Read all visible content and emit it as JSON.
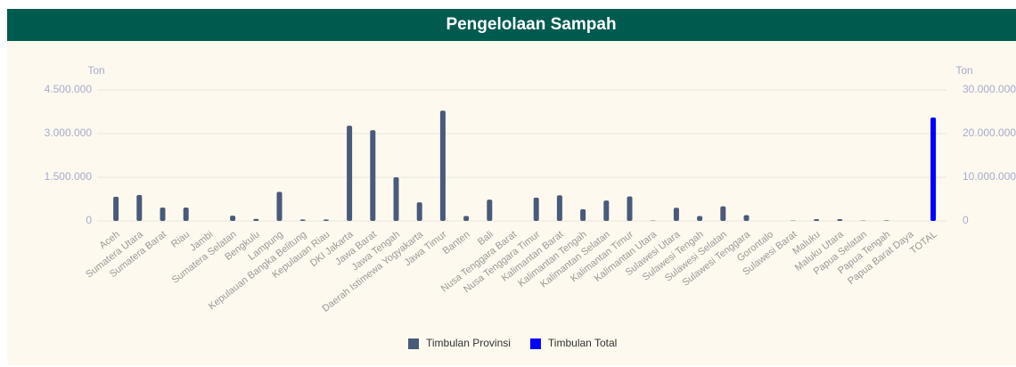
{
  "chart_data": {
    "type": "bar",
    "title": "Pengelolaan Sampah",
    "y_label": "Ton",
    "y2_label": "Ton",
    "categories": [
      "Aceh",
      "Sumatera Utara",
      "Sumatera Barat",
      "Riau",
      "Jambi",
      "Sumatera Selatan",
      "Bengkulu",
      "Lampung",
      "Kepulauan Bangka Belitung",
      "Kepulauan Riau",
      "DKI Jakarta",
      "Jawa Barat",
      "Jawa Tengah",
      "Daerah Istimewa Yogyakarta",
      "Jawa Timur",
      "Banten",
      "Bali",
      "Nusa Tenggara Barat",
      "Nusa Tenggara Timur",
      "Kalimantan Barat",
      "Kalimantan Tengah",
      "Kalimantan Selatan",
      "Kalimantan Timur",
      "Kalimantan Utara",
      "Sulawesi Utara",
      "Sulawesi Tengah",
      "Sulawesi Selatan",
      "Sulawesi Tenggara",
      "Gorontalo",
      "Sulawesi Barat",
      "Maluku",
      "Maluku Utara",
      "Papua Selatan",
      "Papua Tengah",
      "Papua Barat Daya",
      "TOTAL"
    ],
    "series": [
      {
        "name": "Timbulan Provinsi",
        "color": "#4a5a7a",
        "values": [
          830000,
          890000,
          460000,
          460000,
          0,
          180000,
          70000,
          1000000,
          50000,
          50000,
          3270000,
          3120000,
          1500000,
          640000,
          3790000,
          170000,
          730000,
          0,
          800000,
          880000,
          400000,
          700000,
          840000,
          10000,
          450000,
          170000,
          500000,
          200000,
          0,
          10000,
          60000,
          60000,
          10000,
          20000,
          0,
          null
        ]
      },
      {
        "name": "Timbulan Total",
        "color": "#0000ff",
        "axis": "y2",
        "values": [
          null,
          null,
          null,
          null,
          null,
          null,
          null,
          null,
          null,
          null,
          null,
          null,
          null,
          null,
          null,
          null,
          null,
          null,
          null,
          null,
          null,
          null,
          null,
          null,
          null,
          null,
          null,
          null,
          null,
          null,
          null,
          null,
          null,
          null,
          null,
          23700000
        ]
      }
    ],
    "ylim": [
      0,
      4500000
    ],
    "yticks": [
      0,
      {
        "value": 1500000,
        "label": "1.500.000"
      },
      {
        "value": 3000000,
        "label": "3.000.000"
      },
      {
        "value": 4500000,
        "label": "4.500.000"
      }
    ],
    "y2lim": [
      0,
      30000000
    ],
    "y2ticks": [
      0,
      {
        "value": 10000000,
        "label": "10.000.000"
      },
      {
        "value": 20000000,
        "label": "20.000.000"
      },
      {
        "value": 30000000,
        "label": "30.000.000"
      }
    ],
    "grid": true,
    "legend": "bottom"
  }
}
